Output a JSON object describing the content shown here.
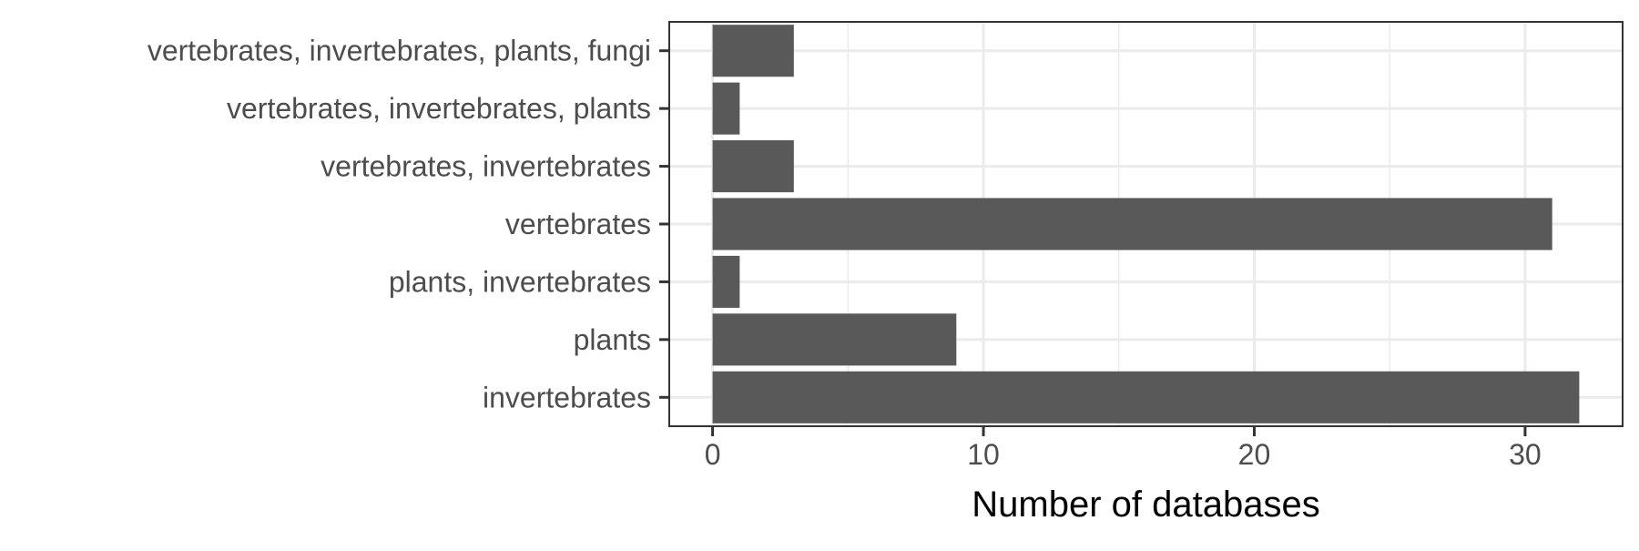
{
  "chart_data": {
    "type": "bar",
    "orientation": "horizontal",
    "categories": [
      "invertebrates",
      "plants",
      "plants, invertebrates",
      "vertebrates",
      "vertebrates, invertebrates",
      "vertebrates, invertebrates, plants",
      "vertebrates, invertebrates, plants, fungi"
    ],
    "values": [
      32,
      9,
      1,
      31,
      3,
      1,
      3
    ],
    "xlabel": "Number of databases",
    "ylabel": "",
    "title": "",
    "xlim": [
      -1.6,
      33.6
    ],
    "xticks": [
      0,
      10,
      20,
      30
    ],
    "xtick_labels": [
      "0",
      "10",
      "20",
      "30"
    ],
    "grid": true,
    "legend": "none",
    "colors": {
      "bar": "#595959",
      "grid": "#ebebeb",
      "panel_border": "#333333",
      "axis_text": "#4d4d4d",
      "axis_title": "#000000",
      "background": "#ffffff"
    }
  }
}
